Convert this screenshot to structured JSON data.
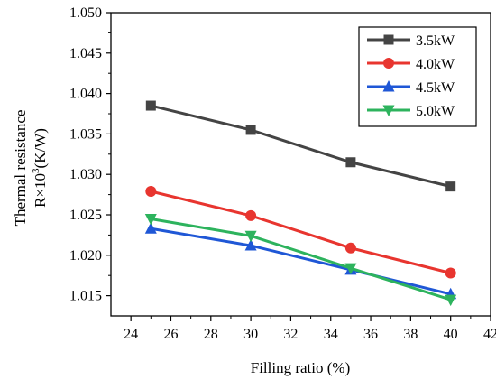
{
  "chart_data": {
    "type": "line",
    "xlabel": "Filling ratio (%)",
    "ylabel_line1": "Thermal resistance",
    "ylabel_line2_prefix": "R×10",
    "ylabel_line2_exp": "3",
    "ylabel_line2_suffix": "(K/W)",
    "xlim": [
      23,
      42
    ],
    "ylim": [
      1.0125,
      1.05
    ],
    "xticks": [
      24,
      26,
      28,
      30,
      32,
      34,
      36,
      38,
      40,
      42
    ],
    "xtick_labels": [
      "24",
      "26",
      "28",
      "30",
      "32",
      "34",
      "36",
      "38",
      "40",
      "42"
    ],
    "yticks": [
      1.015,
      1.02,
      1.025,
      1.03,
      1.035,
      1.04,
      1.045,
      1.05
    ],
    "ytick_labels": [
      "1.015",
      "1.020",
      "1.025",
      "1.030",
      "1.035",
      "1.040",
      "1.045",
      "1.050"
    ],
    "grid": false,
    "legend_position": "top-right",
    "x": [
      25,
      30,
      35,
      40
    ],
    "series": [
      {
        "name": "3.5kW",
        "values": [
          1.0385,
          1.0355,
          1.0315,
          1.0285
        ],
        "color": "#444444",
        "marker": "square"
      },
      {
        "name": "4.0kW",
        "values": [
          1.0279,
          1.0249,
          1.0209,
          1.0178
        ],
        "color": "#e8352f",
        "marker": "circle"
      },
      {
        "name": "4.5kW",
        "values": [
          1.0233,
          1.0212,
          1.0182,
          1.0152
        ],
        "color": "#1f57d6",
        "marker": "triangle-up"
      },
      {
        "name": "5.0kW",
        "values": [
          1.0245,
          1.0224,
          1.0184,
          1.0145
        ],
        "color": "#2db35d",
        "marker": "triangle-down"
      }
    ]
  }
}
